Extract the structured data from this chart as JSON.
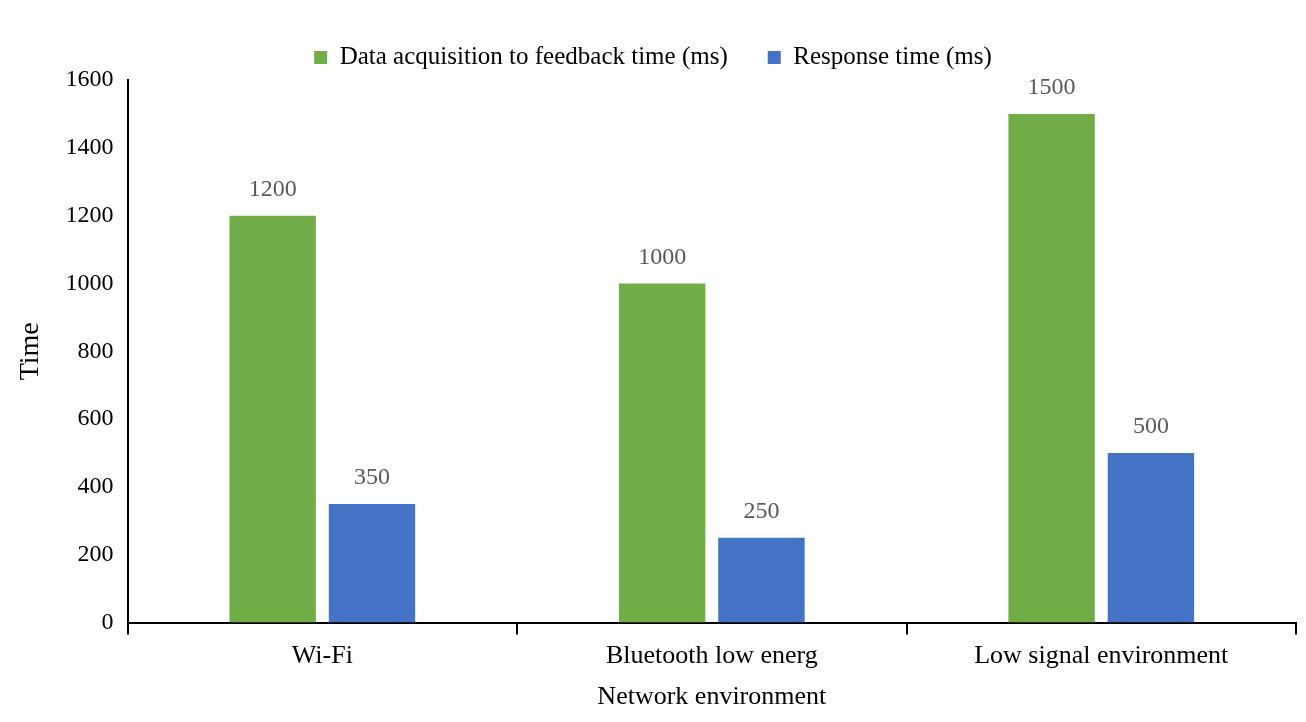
{
  "chart_data": {
    "type": "bar",
    "xlabel": "Network environment",
    "ylabel": "Time",
    "categories": [
      "Wi-Fi",
      "Bluetooth low energ",
      "Low signal environment"
    ],
    "series": [
      {
        "name": "Data acquisition to feedback time (ms)",
        "color": "#70ad47",
        "values": [
          1200,
          1000,
          1500
        ]
      },
      {
        "name": "Response time (ms)",
        "color": "#4472c4",
        "values": [
          350,
          250,
          500
        ]
      }
    ],
    "ylim": [
      0,
      1600
    ],
    "yticks": [
      0,
      200,
      400,
      600,
      800,
      1000,
      1200,
      1400,
      1600
    ],
    "grid": false,
    "legend": "top",
    "data_labels": true
  }
}
